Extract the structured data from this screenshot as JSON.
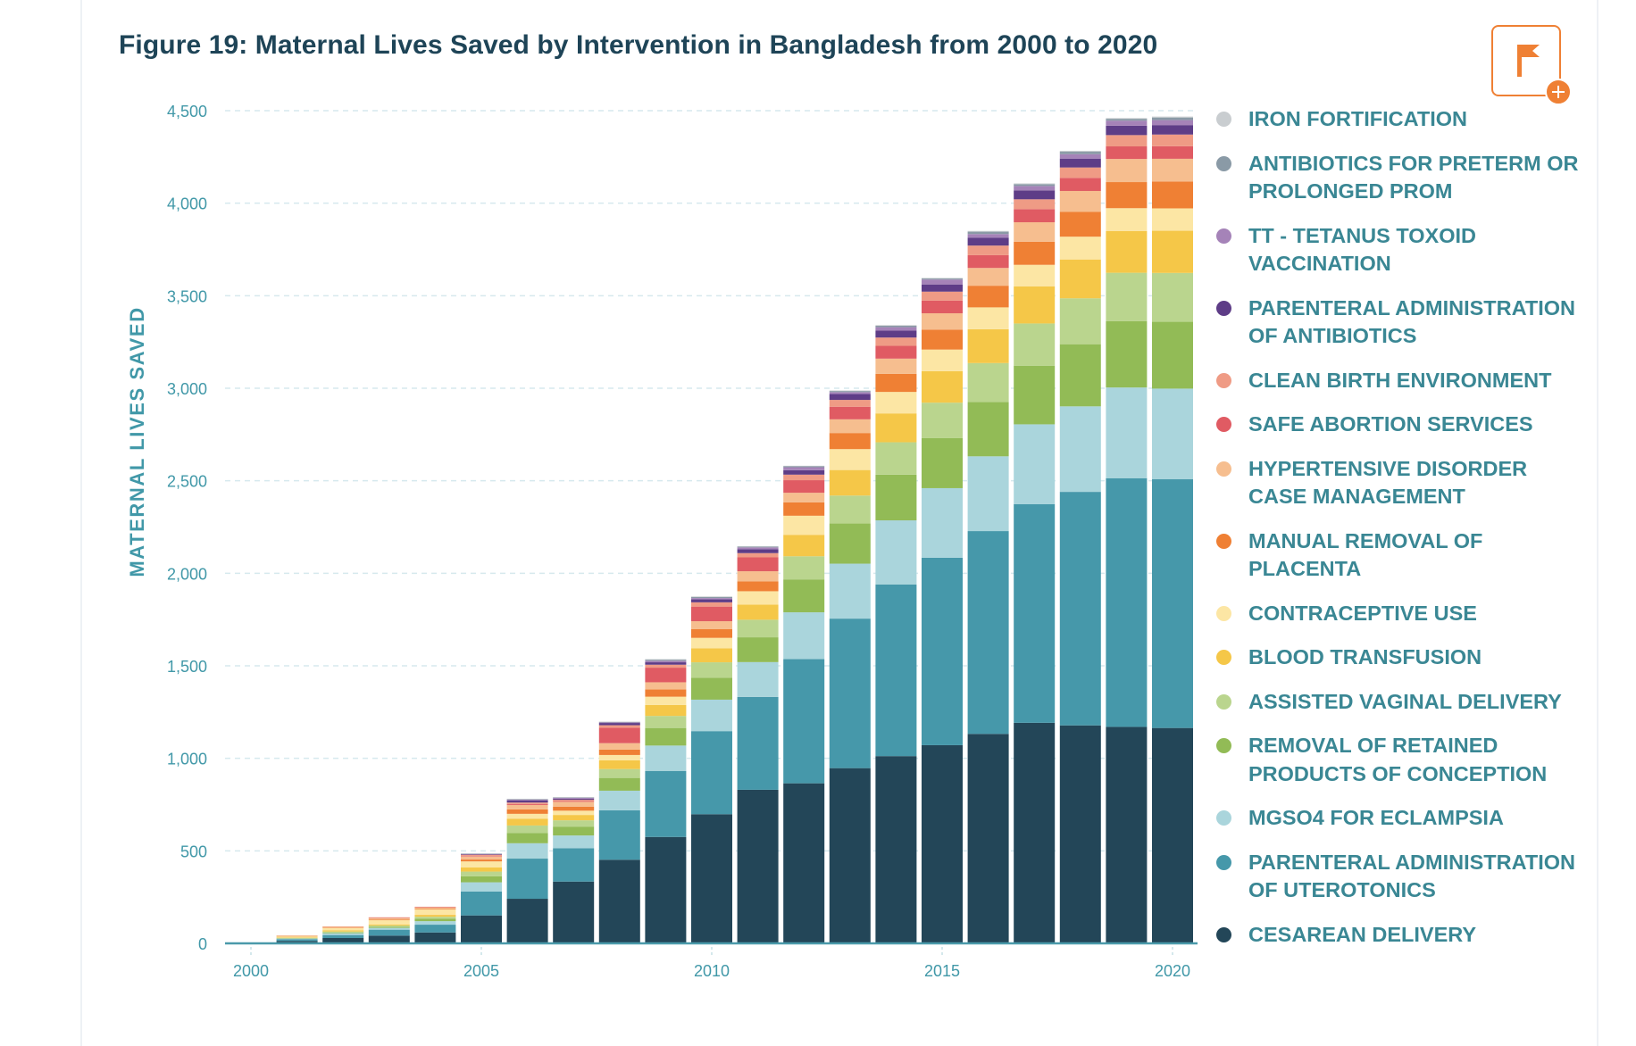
{
  "figure": {
    "title": "Figure 19: Maternal Lives Saved by Intervention in Bangladesh from 2000 to 2020",
    "flag_button_label": "Add flag",
    "flag_icon": "flag-icon",
    "plus_icon": "plus-icon"
  },
  "chart_data": {
    "type": "bar",
    "stacked": true,
    "title": "Figure 19: Maternal Lives Saved by Intervention in Bangladesh from 2000 to 2020",
    "xlabel": "",
    "ylabel": "MATERNAL LIVES SAVED",
    "ylim": [
      0,
      4500
    ],
    "yticks": [
      0,
      500,
      1000,
      1500,
      2000,
      2500,
      3000,
      3500,
      4000,
      4500
    ],
    "ytick_labels": [
      "0",
      "500",
      "1,000",
      "1,500",
      "2,000",
      "2,500",
      "3,000",
      "3,500",
      "4,000",
      "4,500"
    ],
    "xticks": [
      2000,
      2005,
      2010,
      2015,
      2020
    ],
    "xtick_labels": [
      "2000",
      "2005",
      "2010",
      "2015",
      "2020"
    ],
    "grid": "horizontal-dashed",
    "legend_position": "right",
    "categories": [
      2000,
      2001,
      2002,
      2003,
      2004,
      2005,
      2006,
      2007,
      2008,
      2009,
      2010,
      2011,
      2012,
      2013,
      2014,
      2015,
      2016,
      2017,
      2018,
      2019,
      2020
    ],
    "series": [
      {
        "name": "CESAREAN DELIVERY",
        "color": "#234658",
        "values": [
          0,
          13,
          29,
          42,
          59,
          151,
          241,
          334,
          452,
          575,
          698,
          830,
          865,
          947,
          1012,
          1071,
          1132,
          1192,
          1178,
          1170,
          1164
        ]
      },
      {
        "name": "PARENTERAL ADMINISTRATION OF UTEROTONICS",
        "color": "#4698aa",
        "values": [
          0,
          10,
          16,
          32,
          42,
          129,
          217,
          180,
          267,
          357,
          449,
          502,
          671,
          808,
          928,
          1013,
          1096,
          1182,
          1262,
          1344,
          1344
        ]
      },
      {
        "name": "MGSO4 FOR ECLAMPSIA",
        "color": "#aad5dc",
        "values": [
          0,
          3,
          10,
          10,
          19,
          50,
          83,
          69,
          106,
          137,
          170,
          188,
          253,
          297,
          346,
          376,
          404,
          431,
          462,
          490,
          490
        ]
      },
      {
        "name": "REMOVAL OF RETAINED PRODUCTS OF CONCEPTION",
        "color": "#92bb56",
        "values": [
          0,
          2,
          3,
          6,
          14,
          32,
          56,
          48,
          69,
          95,
          119,
          134,
          178,
          217,
          247,
          270,
          294,
          317,
          336,
          358,
          361
        ]
      },
      {
        "name": "ASSISTED VAGINAL DELIVERY",
        "color": "#bad58e",
        "values": [
          0,
          2,
          6,
          6,
          10,
          26,
          40,
          34,
          48,
          65,
          83,
          95,
          125,
          151,
          175,
          192,
          210,
          228,
          248,
          262,
          264
        ]
      },
      {
        "name": "BLOOD TRANSFUSION",
        "color": "#f5c748",
        "values": [
          0,
          3,
          6,
          6,
          10,
          23,
          37,
          29,
          47,
          59,
          76,
          82,
          116,
          138,
          156,
          170,
          183,
          200,
          210,
          225,
          228
        ]
      },
      {
        "name": "CONTRACEPTIVE USE",
        "color": "#fce6a4",
        "values": [
          0,
          6,
          13,
          23,
          29,
          32,
          26,
          23,
          29,
          45,
          56,
          72,
          103,
          113,
          116,
          117,
          118,
          117,
          123,
          124,
          121
        ]
      },
      {
        "name": "MANUAL REMOVAL OF PLACENTA",
        "color": "#ef8034",
        "values": [
          0,
          1,
          2,
          3,
          4,
          10,
          24,
          22,
          29,
          39,
          48,
          53,
          72,
          87,
          98,
          108,
          117,
          125,
          135,
          141,
          145
        ]
      },
      {
        "name": "HYPERTENSIVE DISORDER CASE MANAGEMENT",
        "color": "#f6be8f",
        "values": [
          0,
          3,
          6,
          10,
          8,
          16,
          24,
          26,
          35,
          39,
          42,
          55,
          52,
          74,
          82,
          88,
          96,
          105,
          112,
          125,
          123
        ]
      },
      {
        "name": "SAFE ABORTION SERVICES",
        "color": "#e05b63",
        "values": [
          0,
          0,
          0,
          1,
          1,
          3,
          5,
          4,
          84,
          79,
          79,
          75,
          68,
          68,
          69,
          69,
          69,
          71,
          71,
          68,
          68
        ]
      },
      {
        "name": "CLEAN BIRTH ENVIRONMENT",
        "color": "#ef9b85",
        "values": [
          0,
          0,
          1,
          2,
          2,
          7,
          8,
          7,
          13,
          16,
          23,
          23,
          30,
          37,
          45,
          48,
          52,
          53,
          56,
          61,
          63
        ]
      },
      {
        "name": "PARENTERAL ADMINISTRATION OF ANTIBIOTICS",
        "color": "#5e3d87",
        "values": [
          0,
          0,
          0,
          0,
          0,
          4,
          12,
          6,
          12,
          13,
          16,
          21,
          24,
          32,
          37,
          39,
          43,
          48,
          48,
          51,
          51
        ]
      },
      {
        "name": "TT - TETANUS TOXOID VACCINATION",
        "color": "#a583b8",
        "values": [
          0,
          0,
          0,
          0,
          0,
          1,
          4,
          4,
          3,
          8,
          7,
          10,
          16,
          10,
          19,
          26,
          19,
          24,
          24,
          27,
          27
        ]
      },
      {
        "name": "ANTIBIOTICS FOR PRETERM OR PROLONGED PROM",
        "color": "#8a9aa6",
        "values": [
          0,
          0,
          0,
          0,
          0,
          1,
          3,
          3,
          3,
          6,
          6,
          4,
          5,
          6,
          8,
          6,
          13,
          10,
          13,
          10,
          14
        ]
      },
      {
        "name": "IRON FORTIFICATION",
        "color": "#c9cdd0",
        "values": [
          0,
          0,
          0,
          0,
          0,
          0,
          1,
          1,
          1,
          3,
          3,
          2,
          3,
          3,
          3,
          3,
          4,
          4,
          5,
          4,
          5
        ]
      }
    ]
  },
  "legend": {
    "items": [
      {
        "label": "IRON FORTIFICATION",
        "color": "#c9cdd0"
      },
      {
        "label": "ANTIBIOTICS FOR PRETERM OR PROLONGED PROM",
        "color": "#8a9aa6"
      },
      {
        "label": "TT - TETANUS TOXOID VACCINATION",
        "color": "#a583b8"
      },
      {
        "label": "PARENTERAL ADMINISTRATION OF ANTIBIOTICS",
        "color": "#5e3d87"
      },
      {
        "label": "CLEAN BIRTH ENVIRONMENT",
        "color": "#ef9b85"
      },
      {
        "label": "SAFE ABORTION SERVICES",
        "color": "#e05b63"
      },
      {
        "label": "HYPERTENSIVE DISORDER CASE MANAGEMENT",
        "color": "#f6be8f"
      },
      {
        "label": "MANUAL REMOVAL OF PLACENTA",
        "color": "#ef8034"
      },
      {
        "label": "CONTRACEPTIVE USE",
        "color": "#fce6a4"
      },
      {
        "label": "BLOOD TRANSFUSION",
        "color": "#f5c748"
      },
      {
        "label": "ASSISTED VAGINAL DELIVERY",
        "color": "#bad58e"
      },
      {
        "label": "REMOVAL OF RETAINED PRODUCTS OF CONCEPTION",
        "color": "#92bb56"
      },
      {
        "label": "MGSO4 FOR ECLAMPSIA",
        "color": "#aad5dc"
      },
      {
        "label": "PARENTERAL ADMINISTRATION OF UTEROTONICS",
        "color": "#4698aa"
      },
      {
        "label": "CESAREAN DELIVERY",
        "color": "#234658"
      }
    ]
  },
  "colors": {
    "title": "#1e4457",
    "axis_text": "#4198a8",
    "legend_text": "#3a8794",
    "accent": "#ef8034",
    "gridline": "#d6e9ee",
    "axis_line": "#4a9aaa"
  }
}
